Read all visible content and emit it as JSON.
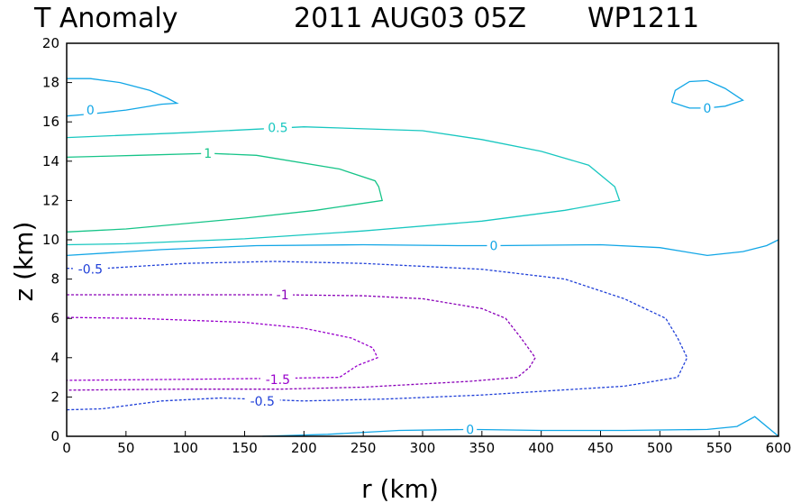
{
  "chart_data": {
    "type": "line",
    "title": "T Anomaly",
    "date": "2011 AUG03 05Z",
    "storm": "WP1211",
    "xlabel": "r (km)",
    "ylabel": "z (km)",
    "xlim": [
      0,
      600
    ],
    "ylim": [
      0,
      20
    ],
    "xticks": [
      0,
      50,
      100,
      150,
      200,
      250,
      300,
      350,
      400,
      450,
      500,
      550,
      600
    ],
    "yticks": [
      0,
      2,
      4,
      6,
      8,
      10,
      12,
      14,
      16,
      18,
      20
    ],
    "grid": false,
    "colors": {
      "-1.5": "#9900cc",
      "-1": "#8a00b8",
      "-0.5": "#1f3fd8",
      "0": "#11a6e6",
      "0.5": "#18c7c0",
      "1": "#16c488"
    },
    "series": [
      {
        "name": "0",
        "level": 0,
        "dashed": false,
        "label": "0",
        "label_at": [
          20,
          16.6
        ],
        "points": [
          [
            0,
            18.2
          ],
          [
            20,
            18.2
          ],
          [
            45,
            18.0
          ],
          [
            70,
            17.6
          ],
          [
            85,
            17.2
          ],
          [
            93,
            16.95
          ],
          [
            80,
            16.9
          ],
          [
            50,
            16.6
          ],
          [
            20,
            16.4
          ],
          [
            0,
            16.3
          ]
        ]
      },
      {
        "name": "0",
        "level": 0,
        "dashed": false,
        "label": "0",
        "label_at": [
          540,
          16.7
        ],
        "points": [
          [
            510,
            17.0
          ],
          [
            513,
            17.6
          ],
          [
            525,
            18.05
          ],
          [
            540,
            18.1
          ],
          [
            555,
            17.7
          ],
          [
            570,
            17.1
          ],
          [
            555,
            16.8
          ],
          [
            540,
            16.7
          ],
          [
            525,
            16.7
          ],
          [
            510,
            17.0
          ]
        ]
      },
      {
        "name": "0.5",
        "level": 0.5,
        "dashed": false,
        "label": "0.5",
        "label_at": [
          178,
          15.7
        ],
        "points": [
          [
            0,
            15.2
          ],
          [
            100,
            15.45
          ],
          [
            200,
            15.75
          ],
          [
            300,
            15.55
          ],
          [
            350,
            15.1
          ],
          [
            400,
            14.5
          ],
          [
            440,
            13.8
          ],
          [
            462,
            12.7
          ],
          [
            466,
            12.0
          ],
          [
            420,
            11.5
          ],
          [
            350,
            10.95
          ],
          [
            250,
            10.45
          ],
          [
            150,
            10.05
          ],
          [
            50,
            9.8
          ],
          [
            0,
            9.75
          ]
        ]
      },
      {
        "name": "1",
        "level": 1,
        "dashed": false,
        "label": "1",
        "label_at": [
          119,
          14.4
        ],
        "points": [
          [
            0,
            14.2
          ],
          [
            60,
            14.3
          ],
          [
            120,
            14.4
          ],
          [
            160,
            14.3
          ],
          [
            230,
            13.6
          ],
          [
            260,
            13.0
          ],
          [
            263,
            12.7
          ],
          [
            266,
            12.0
          ],
          [
            210,
            11.5
          ],
          [
            150,
            11.1
          ],
          [
            50,
            10.55
          ],
          [
            0,
            10.4
          ]
        ]
      },
      {
        "name": "0",
        "level": 0,
        "dashed": false,
        "label": "0",
        "label_at": [
          360,
          9.7
        ],
        "points": [
          [
            0,
            9.2
          ],
          [
            80,
            9.5
          ],
          [
            160,
            9.7
          ],
          [
            250,
            9.75
          ],
          [
            330,
            9.7
          ],
          [
            360,
            9.7
          ],
          [
            450,
            9.75
          ],
          [
            500,
            9.6
          ],
          [
            540,
            9.2
          ],
          [
            570,
            9.4
          ],
          [
            590,
            9.7
          ],
          [
            600,
            10.0
          ]
        ]
      },
      {
        "name": "-0.5",
        "level": -0.5,
        "dashed": true,
        "label": "-0.5",
        "label_at": [
          20,
          8.5
        ],
        "points": [
          [
            0,
            8.55
          ],
          [
            20,
            8.5
          ],
          [
            100,
            8.8
          ],
          [
            175,
            8.9
          ],
          [
            250,
            8.8
          ],
          [
            350,
            8.5
          ],
          [
            420,
            8.0
          ],
          [
            470,
            7.0
          ],
          [
            505,
            6.0
          ],
          [
            515,
            5.0
          ],
          [
            523,
            4.0
          ],
          [
            515,
            3.0
          ],
          [
            470,
            2.55
          ],
          [
            350,
            2.1
          ],
          [
            270,
            1.9
          ],
          [
            200,
            1.8
          ],
          [
            130,
            1.95
          ],
          [
            80,
            1.8
          ],
          [
            30,
            1.4
          ],
          [
            0,
            1.35
          ]
        ]
      },
      {
        "name": "-1",
        "level": -1,
        "dashed": true,
        "label": "-1",
        "label_at": [
          182,
          7.2
        ],
        "points": [
          [
            0,
            7.2
          ],
          [
            90,
            7.2
          ],
          [
            182,
            7.2
          ],
          [
            250,
            7.15
          ],
          [
            300,
            7.0
          ],
          [
            350,
            6.5
          ],
          [
            370,
            6.0
          ],
          [
            383,
            5.0
          ],
          [
            395,
            4.0
          ],
          [
            390,
            3.5
          ],
          [
            380,
            3.0
          ],
          [
            340,
            2.8
          ],
          [
            250,
            2.5
          ],
          [
            180,
            2.4
          ],
          [
            100,
            2.4
          ],
          [
            0,
            2.35
          ]
        ]
      },
      {
        "name": "-1.5",
        "level": -1.5,
        "dashed": true,
        "label": "-1.5",
        "label_at": [
          178,
          2.9
        ],
        "points": [
          [
            0,
            6.05
          ],
          [
            60,
            6.0
          ],
          [
            150,
            5.8
          ],
          [
            200,
            5.5
          ],
          [
            240,
            5.0
          ],
          [
            258,
            4.5
          ],
          [
            262,
            4.0
          ],
          [
            245,
            3.6
          ],
          [
            230,
            3.0
          ],
          [
            178,
            2.95
          ],
          [
            100,
            2.9
          ],
          [
            0,
            2.85
          ]
        ]
      },
      {
        "name": "-0.5",
        "level": -0.5,
        "dashed": true,
        "label": "-0.5",
        "label_at": [
          165,
          1.8
        ],
        "points": []
      },
      {
        "name": "0",
        "level": 0,
        "dashed": false,
        "label": "0",
        "label_at": [
          340,
          0.35
        ],
        "points": [
          [
            165,
            0.0
          ],
          [
            220,
            0.1
          ],
          [
            280,
            0.3
          ],
          [
            340,
            0.35
          ],
          [
            400,
            0.3
          ],
          [
            470,
            0.3
          ],
          [
            540,
            0.35
          ],
          [
            565,
            0.5
          ],
          [
            580,
            1.0
          ],
          [
            600,
            0.0
          ]
        ]
      }
    ]
  }
}
